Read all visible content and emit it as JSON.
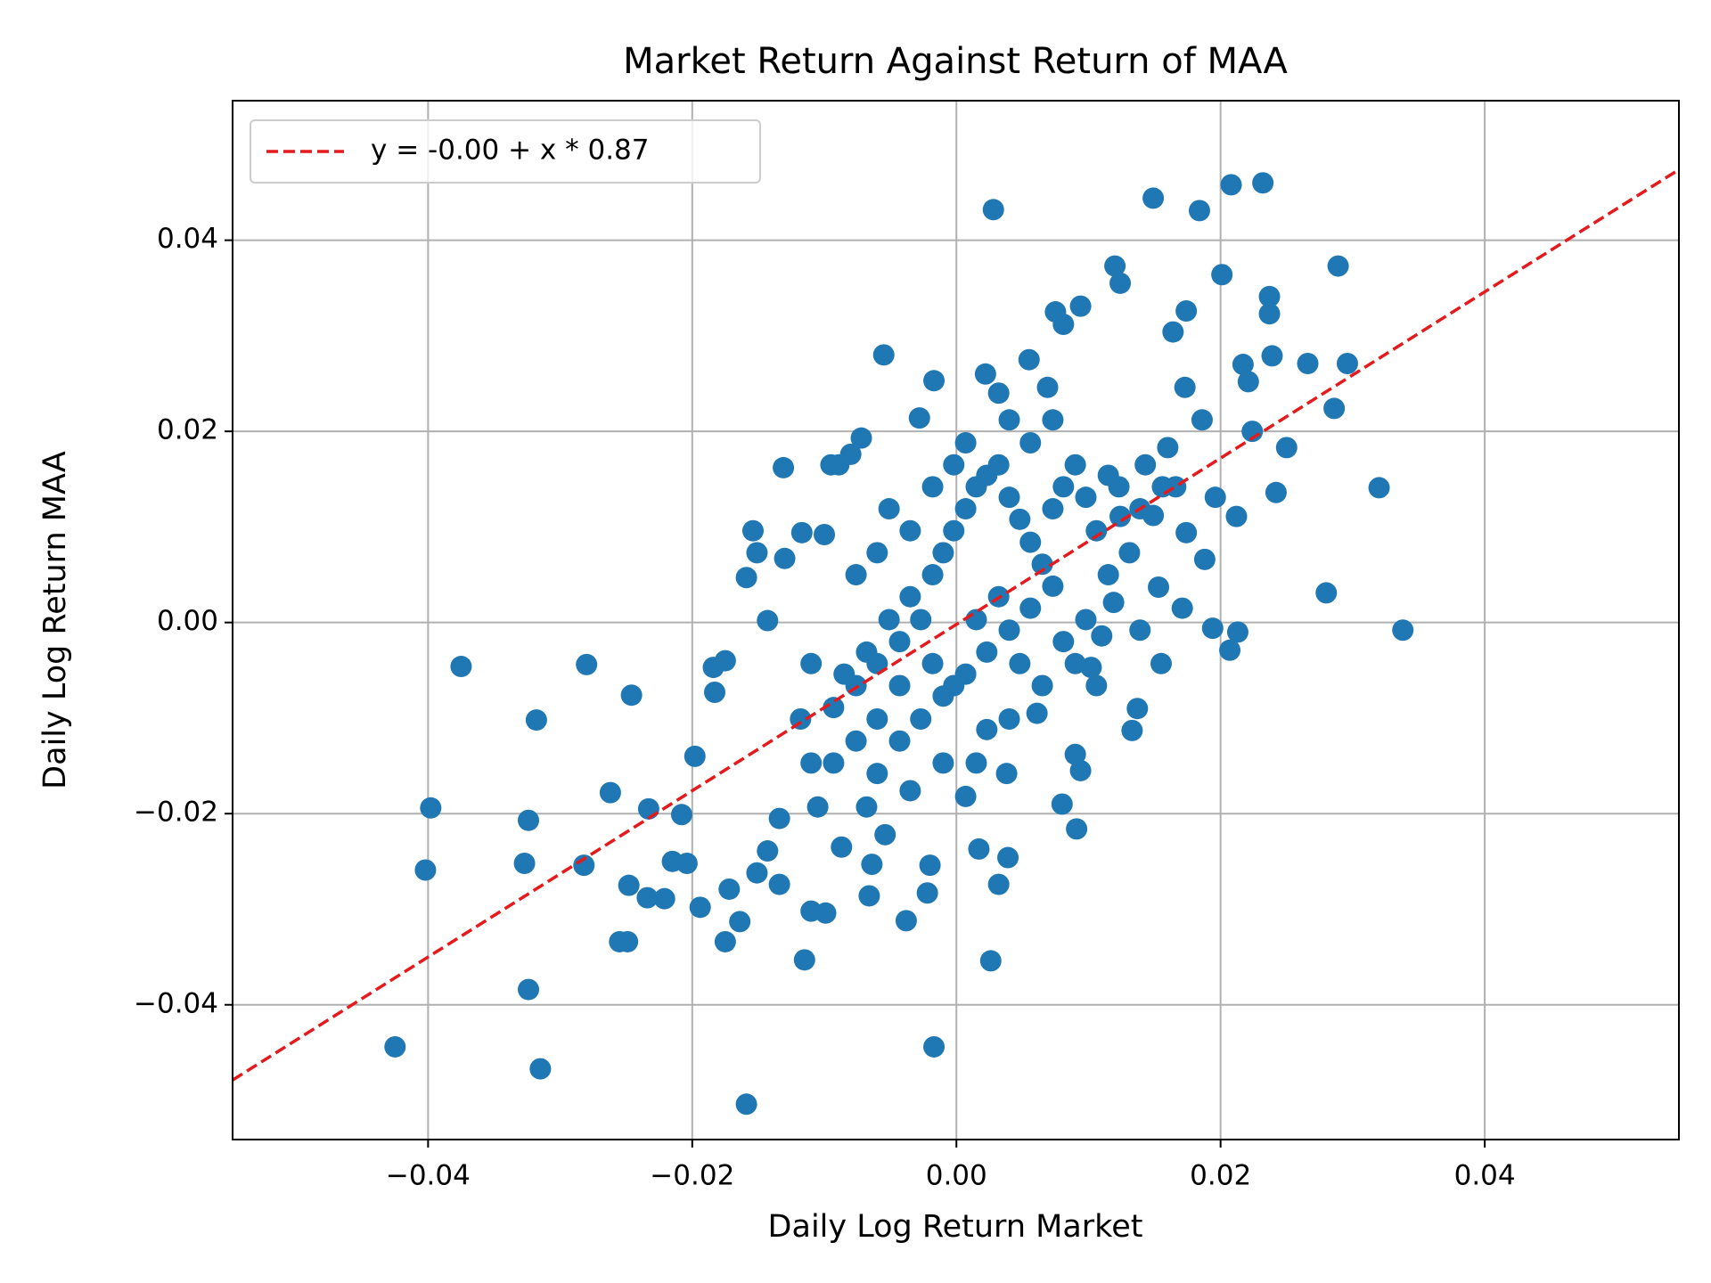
{
  "chart_data": {
    "type": "scatter",
    "title": "Market Return Against Return of MAA",
    "x_label": "Daily Log Return Market",
    "y_label": "Daily Log Return MAA",
    "xlim": [
      -0.0548,
      0.0547
    ],
    "ylim": [
      -0.0541,
      0.0546
    ],
    "xticks": [
      {
        "value": -0.04,
        "label": "−0.04"
      },
      {
        "value": -0.02,
        "label": "−0.02"
      },
      {
        "value": 0,
        "label": "0.00"
      },
      {
        "value": 0.02,
        "label": "0.02"
      },
      {
        "value": 0.04,
        "label": "0.04"
      }
    ],
    "yticks": [
      {
        "value": -0.04,
        "label": "−0.04"
      },
      {
        "value": -0.02,
        "label": "−0.02"
      },
      {
        "value": 0,
        "label": "0.00"
      },
      {
        "value": 0.02,
        "label": "0.02"
      },
      {
        "value": 0.04,
        "label": "0.04"
      }
    ],
    "grid": true,
    "legend": "upper left",
    "fit": {
      "label": "y = -0.00 + x * 0.87",
      "intercept": -0.0002,
      "slope": 0.87,
      "color": "#e41a1c"
    },
    "points": {
      "color": "#1f77b4",
      "x": [
        0.0028,
        0.0149,
        0.0184,
        0.0208,
        0.0232,
        0.0201,
        0.0289,
        0.012,
        0.0124,
        0.0237,
        0.0237,
        0.0239,
        0.0266,
        0.0296,
        0.0217,
        0.0221,
        0.0286,
        0.032,
        0.028,
        0.0338,
        0.0174,
        0.0164,
        0.0094,
        0.0075,
        0.0081,
        0.0055,
        0.0022,
        -0.0055,
        -0.0017,
        -0.0028,
        -0.0072,
        -0.0131,
        -0.0095,
        0.0032,
        0.0173,
        0.0186,
        0.0224,
        0.025,
        0.0242,
        0.0196,
        0.0212,
        0.0188,
        0.0194,
        0.0213,
        0.0207,
        0.0139,
        0.0155,
        0.0137,
        0.0133,
        0.0102,
        0.0094,
        0.009,
        0.008,
        0.0091,
        0.0038,
        0.0039,
        0.0032,
        0.0017,
        0.0026,
        -0.0017,
        -0.002,
        -0.0022,
        -0.0038,
        -0.0066,
        -0.0064,
        -0.0054,
        -0.0115,
        -0.011,
        -0.0099,
        -0.0087,
        -0.0159,
        -0.0164,
        -0.0175,
        -0.0172,
        -0.0194,
        -0.0204,
        -0.0215,
        -0.0221,
        -0.0234,
        -0.0249,
        -0.0255,
        -0.0248,
        -0.0233,
        -0.0208,
        -0.0262,
        -0.0282,
        -0.0315,
        -0.0324,
        -0.0327,
        -0.0324,
        -0.0318,
        -0.0246,
        -0.028,
        -0.0375,
        -0.0398,
        -0.0402,
        -0.0425,
        -0.0198,
        -0.0183,
        -0.0184,
        -0.0175,
        -0.0143,
        -0.0154,
        -0.0159,
        -0.0151,
        -0.013,
        -0.0117,
        -0.01,
        -0.0089,
        -0.008,
        0.0124,
        0.016,
        0.0143,
        0.0166,
        0.0149,
        0.0174,
        0.0153,
        0.0171,
        0.0119,
        0.011,
        0.0061,
        0.0015,
        0.0007,
        -0.001,
        -0.0035,
        -0.0068,
        -0.0105,
        -0.0134,
        -0.0143,
        -0.0134,
        -0.0151,
        -0.011,
        -0.0093,
        -0.0076,
        -0.006,
        -0.0043,
        -0.0027,
        -0.0018,
        -0.001,
        -0.0002,
        0.0007,
        0.0015,
        0.0023,
        0.0032,
        0.004,
        0.0048,
        0.0056,
        0.0065,
        0.0073,
        0.0081,
        0.009,
        0.0098,
        0.0106,
        0.0115,
        0.0073,
        0.0056,
        0.004,
        0.0023,
        0.0007,
        -0.001,
        -0.0027,
        -0.0043,
        -0.006,
        -0.0076,
        -0.0093,
        -0.0085,
        -0.0068,
        -0.0051,
        -0.0035,
        -0.0018,
        -0.0002,
        0.0015,
        0.0032,
        0.0048,
        0.0065,
        0.0081,
        0.0098,
        0.0115,
        0.0131,
        -0.0002,
        0.0007,
        0.004,
        0.0056,
        0.0073,
        0.0069,
        0.009,
        0.0106,
        0.004,
        0.0023,
        -0.0043,
        -0.006,
        -0.0118,
        -0.011,
        -0.0076,
        -0.006,
        -0.0051,
        -0.0035,
        -0.0018,
        0.0123,
        0.0156,
        0.0139
      ],
      "y": [
        0.0432,
        0.0444,
        0.0431,
        0.0458,
        0.046,
        0.0364,
        0.0373,
        0.0373,
        0.0355,
        0.0341,
        0.0323,
        0.0279,
        0.0271,
        0.0271,
        0.027,
        0.0252,
        0.0224,
        0.0141,
        0.0031,
        -0.0008,
        0.0326,
        0.0304,
        0.0331,
        0.0325,
        0.0312,
        0.0275,
        0.026,
        0.028,
        0.0253,
        0.0214,
        0.0193,
        0.0162,
        0.0165,
        0.024,
        0.0246,
        0.0212,
        0.02,
        0.0183,
        0.0136,
        0.0131,
        0.0111,
        0.0066,
        -0.0006,
        -0.001,
        -0.0029,
        -0.0008,
        -0.0043,
        -0.009,
        -0.0113,
        -0.0047,
        -0.0155,
        -0.0138,
        -0.019,
        -0.0216,
        -0.0158,
        -0.0246,
        -0.0274,
        -0.0237,
        -0.0354,
        -0.0444,
        -0.0254,
        -0.0283,
        -0.0312,
        -0.0286,
        -0.0253,
        -0.0222,
        -0.0353,
        -0.0302,
        -0.0304,
        -0.0235,
        -0.0504,
        -0.0313,
        -0.0334,
        -0.0279,
        -0.0298,
        -0.0252,
        -0.025,
        -0.0289,
        -0.0288,
        -0.0334,
        -0.0334,
        -0.0275,
        -0.0195,
        -0.0201,
        -0.0178,
        -0.0254,
        -0.0467,
        -0.0384,
        -0.0252,
        -0.0207,
        -0.0102,
        -0.0076,
        -0.0044,
        -0.0046,
        -0.0194,
        -0.0259,
        -0.0444,
        -0.014,
        -0.0073,
        -0.0047,
        -0.004,
        0.0002,
        0.0096,
        0.0047,
        0.0073,
        0.0067,
        0.0094,
        0.0092,
        0.0165,
        0.0176,
        0.0111,
        0.0183,
        0.0165,
        0.0142,
        0.0112,
        0.0094,
        0.0037,
        0.0015,
        0.0021,
        -0.0014,
        -0.0095,
        -0.0147,
        -0.0182,
        -0.0147,
        -0.0176,
        -0.0193,
        -0.0193,
        -0.0205,
        -0.0239,
        -0.0274,
        -0.0262,
        -0.0147,
        -0.0089,
        -0.0066,
        -0.0043,
        -0.002,
        0.0003,
        0.005,
        0.0073,
        0.0096,
        0.0119,
        0.0142,
        0.0154,
        0.0165,
        0.0131,
        0.0108,
        0.0084,
        0.0061,
        0.0119,
        0.0142,
        0.0165,
        0.0131,
        0.0096,
        0.0154,
        0.0038,
        0.0015,
        -0.0008,
        -0.0031,
        -0.0054,
        -0.0077,
        -0.0101,
        -0.0124,
        -0.0101,
        -0.0124,
        -0.0147,
        -0.0054,
        -0.0031,
        0.0003,
        0.0027,
        -0.0043,
        -0.0066,
        0.0003,
        0.0027,
        -0.0043,
        -0.0066,
        -0.002,
        0.0003,
        0.005,
        0.0073,
        0.0165,
        0.0188,
        0.0212,
        0.0188,
        0.0212,
        0.0246,
        -0.0043,
        -0.0066,
        -0.0101,
        -0.0112,
        -0.0066,
        -0.0158,
        -0.0101,
        -0.0043,
        0.005,
        0.0073,
        0.0119,
        0.0096,
        0.0142,
        0.0142,
        0.0142,
        0.0119
      ]
    }
  }
}
